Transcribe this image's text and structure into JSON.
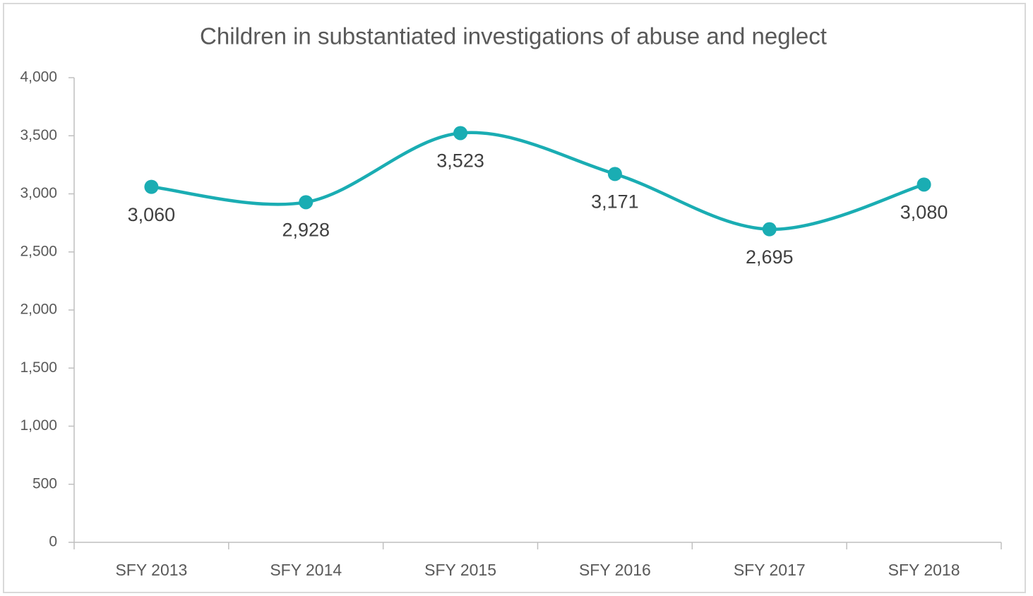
{
  "chart_data": {
    "type": "line",
    "title": "Children in substantiated investigations of abuse and neglect",
    "categories": [
      "SFY 2013",
      "SFY 2014",
      "SFY 2015",
      "SFY 2016",
      "SFY 2017",
      "SFY 2018"
    ],
    "values": [
      3060,
      2928,
      3523,
      3171,
      2695,
      3080
    ],
    "value_labels": [
      "3,060",
      "2,928",
      "3,523",
      "3,171",
      "2,695",
      "3,080"
    ],
    "color": "#1aadb3",
    "ylim": [
      0,
      4000
    ],
    "yticks": [
      0,
      500,
      {
        "value": 1000,
        "label": "1,000"
      },
      {
        "value": 1500,
        "label": "1,500"
      },
      {
        "value": 2000,
        "label": "2,000"
      },
      {
        "value": 2500,
        "label": "2,500"
      },
      {
        "value": 3000,
        "label": "3,000"
      },
      {
        "value": 3500,
        "label": "3,500"
      },
      {
        "value": 4000,
        "label": "4,000"
      }
    ],
    "grid": false
  }
}
